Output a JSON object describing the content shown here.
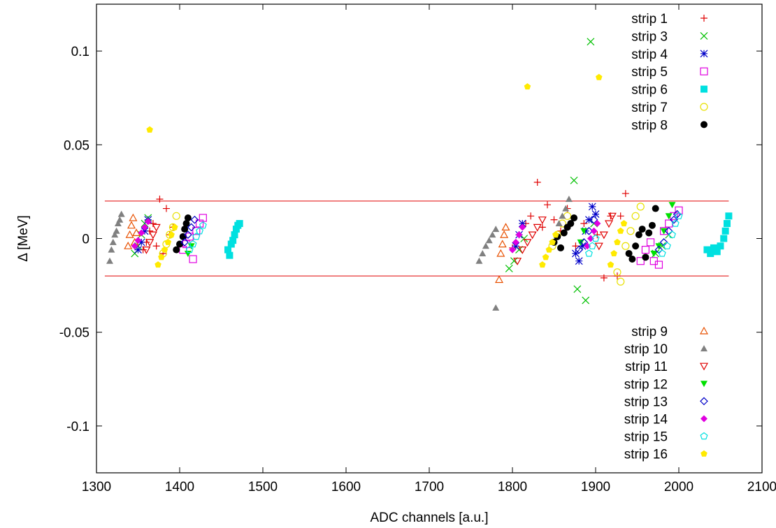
{
  "chart_data": {
    "type": "scatter",
    "xlabel": "ADC channels [a.u.]",
    "ylabel": "Δ [MeV]",
    "xlim": [
      1300,
      2100
    ],
    "ylim": [
      -0.125,
      0.125
    ],
    "x_ticks": [
      "1300",
      "1400",
      "1500",
      "1600",
      "1700",
      "1800",
      "1900",
      "2000",
      "2100"
    ],
    "x_tick_values": [
      1300,
      1400,
      1500,
      1600,
      1700,
      1800,
      1900,
      2000,
      2100
    ],
    "y_ticks": [
      "0.1",
      "0.05",
      "0",
      "-0.05",
      "-0.1"
    ],
    "y_tick_values": [
      0.1,
      0.05,
      0,
      -0.05,
      -0.1
    ],
    "grid": false,
    "legend_placement": [
      "top-right",
      "bottom-right"
    ],
    "reference_lines": [
      0.02,
      -0.02
    ],
    "reference_line_x_range": [
      1310,
      2060
    ],
    "reference_line_color": "#e00000",
    "series": [
      {
        "name": "strip 1",
        "marker": "plus",
        "color": "#e00000",
        "points": [
          [
            1356,
            -0.006
          ],
          [
            1360,
            -0.002
          ],
          [
            1364,
            0.004
          ],
          [
            1368,
            0.008
          ],
          [
            1372,
            -0.004
          ],
          [
            1376,
            0.021
          ],
          [
            1380,
            -0.008
          ],
          [
            1384,
            0.016
          ],
          [
            1388,
            0.002
          ],
          [
            1392,
            0.006
          ],
          [
            1800,
            -0.005
          ],
          [
            1808,
            0.002
          ],
          [
            1816,
            0.008
          ],
          [
            1822,
            0.012
          ],
          [
            1830,
            0.03
          ],
          [
            1836,
            0.006
          ],
          [
            1842,
            0.018
          ],
          [
            1850,
            0.01
          ],
          [
            1858,
            0.004
          ],
          [
            1866,
            0.016
          ],
          [
            1876,
            -0.004
          ],
          [
            1886,
            0.008
          ],
          [
            1902,
            0.002
          ],
          [
            1910,
            -0.021
          ],
          [
            1918,
            0.012
          ],
          [
            1926,
            -0.02
          ],
          [
            1930,
            0.012
          ],
          [
            1936,
            0.024
          ]
        ]
      },
      {
        "name": "strip 3",
        "marker": "cross",
        "color": "#00c000",
        "points": [
          [
            1346,
            -0.008
          ],
          [
            1350,
            -0.004
          ],
          [
            1354,
            0.002
          ],
          [
            1358,
            0.008
          ],
          [
            1362,
            0.011
          ],
          [
            1796,
            -0.016
          ],
          [
            1802,
            -0.012
          ],
          [
            1808,
            -0.006
          ],
          [
            1814,
            0.0
          ],
          [
            1874,
            0.031
          ],
          [
            1878,
            -0.027
          ],
          [
            1888,
            -0.033
          ],
          [
            1894,
            0.105
          ],
          [
            1898,
            0.008
          ],
          [
            1972,
            -0.008
          ],
          [
            1980,
            -0.004
          ],
          [
            1988,
            0.002
          ]
        ]
      },
      {
        "name": "strip 4",
        "marker": "star",
        "color": "#0000c8",
        "points": [
          [
            1350,
            -0.006
          ],
          [
            1354,
            -0.002
          ],
          [
            1358,
            0.004
          ],
          [
            1362,
            0.01
          ],
          [
            1804,
            -0.004
          ],
          [
            1808,
            0.002
          ],
          [
            1812,
            0.008
          ],
          [
            1876,
            -0.008
          ],
          [
            1880,
            -0.012
          ],
          [
            1884,
            -0.004
          ],
          [
            1888,
            0.004
          ],
          [
            1892,
            0.01
          ],
          [
            1896,
            0.017
          ],
          [
            1900,
            0.013
          ]
        ]
      },
      {
        "name": "strip 5",
        "marker": "square-open",
        "color": "#e000e0",
        "points": [
          [
            1404,
            -0.006
          ],
          [
            1408,
            -0.003
          ],
          [
            1412,
            0.001
          ],
          [
            1416,
            -0.011
          ],
          [
            1420,
            0.004
          ],
          [
            1424,
            0.008
          ],
          [
            1428,
            0.011
          ],
          [
            1954,
            -0.012
          ],
          [
            1960,
            -0.006
          ],
          [
            1966,
            -0.002
          ],
          [
            1970,
            -0.012
          ],
          [
            1976,
            -0.014
          ],
          [
            1982,
            0.004
          ],
          [
            1988,
            0.008
          ],
          [
            1994,
            0.012
          ],
          [
            2000,
            0.015
          ]
        ]
      },
      {
        "name": "strip 6",
        "marker": "square-filled",
        "color": "#00e0e0",
        "points": [
          [
            1458,
            -0.006
          ],
          [
            1460,
            -0.009
          ],
          [
            1462,
            -0.003
          ],
          [
            1464,
            -0.001
          ],
          [
            1466,
            0.002
          ],
          [
            1468,
            0.005
          ],
          [
            1470,
            0.007
          ],
          [
            1472,
            0.008
          ],
          [
            2034,
            -0.006
          ],
          [
            2038,
            -0.008
          ],
          [
            2042,
            -0.005
          ],
          [
            2046,
            -0.007
          ],
          [
            2050,
            -0.004
          ],
          [
            2054,
            0.0
          ],
          [
            2056,
            0.004
          ],
          [
            2058,
            0.008
          ],
          [
            2060,
            0.012
          ]
        ]
      },
      {
        "name": "strip 7",
        "marker": "circle-open",
        "color": "#e8e000",
        "points": [
          [
            1380,
            -0.008
          ],
          [
            1384,
            -0.003
          ],
          [
            1388,
            0.002
          ],
          [
            1392,
            0.006
          ],
          [
            1396,
            0.012
          ],
          [
            1848,
            -0.004
          ],
          [
            1854,
            0.002
          ],
          [
            1860,
            0.008
          ],
          [
            1866,
            0.012
          ],
          [
            1926,
            -0.018
          ],
          [
            1930,
            -0.023
          ],
          [
            1936,
            -0.004
          ],
          [
            1942,
            0.004
          ],
          [
            1948,
            0.012
          ],
          [
            1954,
            0.017
          ]
        ]
      },
      {
        "name": "strip 8",
        "marker": "circle-filled",
        "color": "#000000",
        "points": [
          [
            1396,
            -0.006
          ],
          [
            1400,
            -0.003
          ],
          [
            1404,
            0.001
          ],
          [
            1406,
            0.005
          ],
          [
            1408,
            0.008
          ],
          [
            1410,
            0.011
          ],
          [
            1850,
            -0.002
          ],
          [
            1854,
            0.001
          ],
          [
            1858,
            -0.005
          ],
          [
            1862,
            0.003
          ],
          [
            1866,
            0.006
          ],
          [
            1870,
            0.008
          ],
          [
            1874,
            0.011
          ],
          [
            1940,
            -0.008
          ],
          [
            1944,
            -0.011
          ],
          [
            1948,
            -0.004
          ],
          [
            1952,
            0.002
          ],
          [
            1956,
            0.005
          ],
          [
            1960,
            -0.01
          ],
          [
            1964,
            0.003
          ],
          [
            1968,
            0.007
          ],
          [
            1972,
            0.016
          ]
        ]
      },
      {
        "name": "strip 9",
        "marker": "triangle-open",
        "color": "#e85000",
        "points": [
          [
            1338,
            -0.004
          ],
          [
            1340,
            0.002
          ],
          [
            1342,
            0.007
          ],
          [
            1344,
            0.011
          ],
          [
            1346,
            -0.002
          ],
          [
            1348,
            0.003
          ],
          [
            1784,
            -0.022
          ],
          [
            1786,
            -0.008
          ],
          [
            1788,
            -0.003
          ],
          [
            1790,
            0.002
          ],
          [
            1792,
            0.006
          ]
        ]
      },
      {
        "name": "strip 10",
        "marker": "triangle-filled",
        "color": "#808080",
        "points": [
          [
            1316,
            -0.012
          ],
          [
            1318,
            -0.006
          ],
          [
            1320,
            -0.002
          ],
          [
            1322,
            0.002
          ],
          [
            1324,
            0.004
          ],
          [
            1326,
            0.008
          ],
          [
            1328,
            0.01
          ],
          [
            1330,
            0.013
          ],
          [
            1760,
            -0.012
          ],
          [
            1764,
            -0.008
          ],
          [
            1768,
            -0.004
          ],
          [
            1772,
            -0.001
          ],
          [
            1776,
            0.002
          ],
          [
            1780,
            -0.037
          ],
          [
            1780,
            0.005
          ],
          [
            1856,
            0.008
          ],
          [
            1860,
            0.012
          ],
          [
            1864,
            0.016
          ],
          [
            1868,
            0.021
          ]
        ]
      },
      {
        "name": "strip 11",
        "marker": "triangle-down-open",
        "color": "#e00000",
        "points": [
          [
            1360,
            -0.006
          ],
          [
            1364,
            -0.002
          ],
          [
            1368,
            0.002
          ],
          [
            1372,
            0.006
          ],
          [
            1806,
            -0.012
          ],
          [
            1812,
            -0.006
          ],
          [
            1818,
            -0.002
          ],
          [
            1824,
            0.002
          ],
          [
            1830,
            0.006
          ],
          [
            1836,
            0.01
          ],
          [
            1904,
            -0.004
          ],
          [
            1910,
            0.002
          ],
          [
            1916,
            0.008
          ],
          [
            1920,
            0.012
          ]
        ]
      },
      {
        "name": "strip 12",
        "marker": "triangle-down-filled",
        "color": "#00e000",
        "points": [
          [
            1410,
            -0.008
          ],
          [
            1414,
            -0.004
          ],
          [
            1882,
            -0.002
          ],
          [
            1886,
            0.004
          ],
          [
            1970,
            -0.008
          ],
          [
            1976,
            -0.004
          ],
          [
            1982,
            0.004
          ],
          [
            1988,
            0.012
          ],
          [
            1992,
            0.018
          ]
        ]
      },
      {
        "name": "strip 13",
        "marker": "diamond-open",
        "color": "#0000c8",
        "points": [
          [
            1406,
            -0.002
          ],
          [
            1410,
            0.002
          ],
          [
            1414,
            0.006
          ],
          [
            1418,
            0.01
          ],
          [
            1880,
            -0.006
          ],
          [
            1886,
            -0.002
          ],
          [
            1892,
            0.004
          ],
          [
            1898,
            0.01
          ],
          [
            1976,
            -0.006
          ],
          [
            1982,
            -0.002
          ],
          [
            1988,
            0.004
          ],
          [
            1994,
            0.01
          ],
          [
            1998,
            0.013
          ]
        ]
      },
      {
        "name": "strip 14",
        "marker": "diamond-filled",
        "color": "#e000e0",
        "points": [
          [
            1346,
            -0.004
          ],
          [
            1350,
            -0.001
          ],
          [
            1354,
            0.003
          ],
          [
            1358,
            0.006
          ],
          [
            1362,
            0.009
          ],
          [
            1800,
            -0.006
          ],
          [
            1804,
            -0.002
          ],
          [
            1808,
            0.002
          ],
          [
            1812,
            0.006
          ],
          [
            1890,
            -0.004
          ],
          [
            1894,
            0.0
          ],
          [
            1898,
            0.004
          ],
          [
            1902,
            0.008
          ]
        ]
      },
      {
        "name": "strip 15",
        "marker": "pentagon-open",
        "color": "#00e0e0",
        "points": [
          [
            1412,
            -0.006
          ],
          [
            1416,
            -0.003
          ],
          [
            1420,
            0.001
          ],
          [
            1424,
            0.004
          ],
          [
            1428,
            0.007
          ],
          [
            1892,
            -0.008
          ],
          [
            1896,
            -0.004
          ],
          [
            1900,
            0.0
          ],
          [
            1980,
            -0.008
          ],
          [
            1986,
            -0.004
          ],
          [
            1992,
            0.002
          ],
          [
            1996,
            0.008
          ],
          [
            2000,
            0.012
          ]
        ]
      },
      {
        "name": "strip 16",
        "marker": "pentagon-filled",
        "color": "#ffea00",
        "points": [
          [
            1364,
            0.058
          ],
          [
            1374,
            -0.014
          ],
          [
            1378,
            -0.01
          ],
          [
            1382,
            -0.006
          ],
          [
            1386,
            -0.002
          ],
          [
            1390,
            0.002
          ],
          [
            1394,
            0.006
          ],
          [
            1818,
            0.081
          ],
          [
            1836,
            -0.014
          ],
          [
            1840,
            -0.01
          ],
          [
            1844,
            -0.006
          ],
          [
            1848,
            -0.002
          ],
          [
            1852,
            0.002
          ],
          [
            1904,
            0.086
          ],
          [
            1918,
            -0.014
          ],
          [
            1922,
            -0.008
          ],
          [
            1926,
            -0.002
          ],
          [
            1930,
            0.004
          ],
          [
            1934,
            0.008
          ]
        ]
      }
    ]
  }
}
